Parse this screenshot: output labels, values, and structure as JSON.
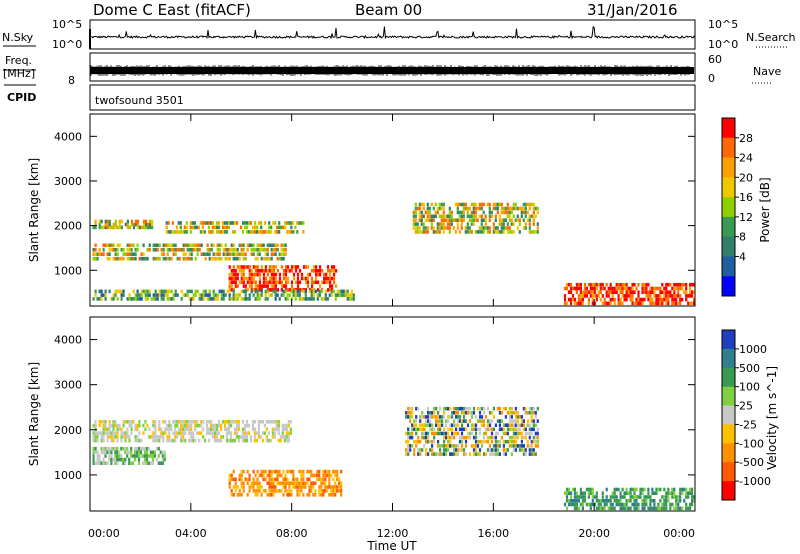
{
  "header": {
    "station": "Dome C East (fitACF)",
    "beam": "Beam 00",
    "date": "31/Jan/2016"
  },
  "top_strips": {
    "nsky_label": "N.Sky",
    "nsky_ticks": [
      "10^5",
      "10^0"
    ],
    "nsearch_label": "N.Search",
    "nsearch_ticks": [
      "10^5",
      "10^0"
    ],
    "freq_label": "Freq.",
    "freq_unit": "[MHz]",
    "freq_ticks": [
      "8"
    ],
    "nave_label": "Nave",
    "nave_ticks": [
      "60",
      "0"
    ],
    "cpid_label": "CPID",
    "cpid_value": "twofsound 3501"
  },
  "chart_data": [
    {
      "type": "heatmap",
      "name": "power",
      "ylabel": "Slant Range [km]",
      "ylim": [
        200,
        4500
      ],
      "yticks": [
        "4000",
        "3000",
        "2000",
        "1000"
      ],
      "xlim_hours": [
        0,
        24
      ],
      "colorbar": {
        "label": "Power [dB]",
        "ticks": [
          "28",
          "24",
          "20",
          "16",
          "12",
          "8",
          "4"
        ],
        "colors": [
          "#ff0000",
          "#ff6a00",
          "#ffa000",
          "#f0c800",
          "#8fd000",
          "#3a9a50",
          "#2f7f6a",
          "#1f5fa0",
          "#0000ff"
        ]
      },
      "echo_regions": [
        {
          "t": [
            0.1,
            2.5
          ],
          "r": [
            2000,
            2200
          ],
          "level": "medium"
        },
        {
          "t": [
            0.1,
            7.8
          ],
          "r": [
            1300,
            1700
          ],
          "level": "medium"
        },
        {
          "t": [
            5.5,
            9.8
          ],
          "r": [
            600,
            1200
          ],
          "level": "high"
        },
        {
          "t": [
            3.0,
            8.5
          ],
          "r": [
            1900,
            2200
          ],
          "level": "medium"
        },
        {
          "t": [
            12.8,
            17.8
          ],
          "r": [
            1900,
            2600
          ],
          "level": "medium"
        },
        {
          "t": [
            18.8,
            24.0
          ],
          "r": [
            300,
            800
          ],
          "level": "high"
        },
        {
          "t": [
            0.1,
            10.5
          ],
          "r": [
            400,
            650
          ],
          "level": "low"
        }
      ]
    },
    {
      "type": "heatmap",
      "name": "velocity",
      "xlabel": "Time UT",
      "ylabel": "Slant Range [km]",
      "ylim": [
        200,
        4500
      ],
      "yticks": [
        "4000",
        "3000",
        "2000",
        "1000"
      ],
      "xlim_hours": [
        0,
        24
      ],
      "xticks": [
        "00:00",
        "04:00",
        "08:00",
        "12:00",
        "16:00",
        "20:00",
        "00:00"
      ],
      "colorbar": {
        "label": "Velocity [m s^-1]",
        "ticks": [
          "1000",
          "500",
          "100",
          "25",
          "-25",
          "-100",
          "-500",
          "-1000"
        ],
        "colors": [
          "#1f3fbf",
          "#2f7f8f",
          "#3a9a50",
          "#7ed040",
          "#c8c8c8",
          "#ffc000",
          "#ff9000",
          "#ff5a00",
          "#ff0000"
        ]
      },
      "echo_regions": [
        {
          "t": [
            0.1,
            8.0
          ],
          "r": [
            1800,
            2300
          ],
          "level": "near-zero"
        },
        {
          "t": [
            5.5,
            10.0
          ],
          "r": [
            600,
            1200
          ],
          "level": "negative"
        },
        {
          "t": [
            0.1,
            3.0
          ],
          "r": [
            1300,
            1700
          ],
          "level": "weak-positive"
        },
        {
          "t": [
            12.5,
            17.8
          ],
          "r": [
            1500,
            2600
          ],
          "level": "mixed"
        },
        {
          "t": [
            18.8,
            24.0
          ],
          "r": [
            300,
            800
          ],
          "level": "positive"
        }
      ]
    }
  ]
}
